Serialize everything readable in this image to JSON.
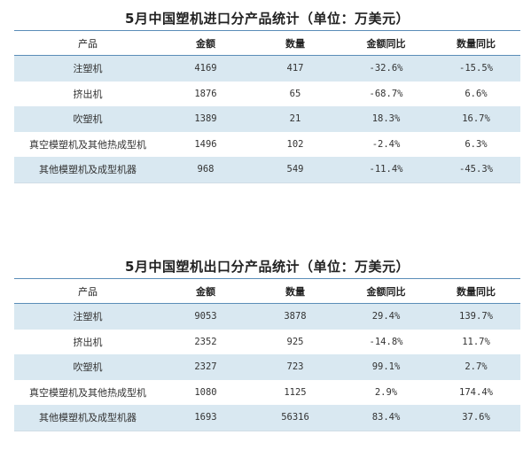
{
  "tables": [
    {
      "title": "5月中国塑机进口分产品统计（单位：万美元）",
      "headers": [
        "产品",
        "金额",
        "数量",
        "金额同比",
        "数量同比"
      ],
      "rows": [
        [
          "注塑机",
          "4169",
          "417",
          "-32.6%",
          "-15.5%"
        ],
        [
          "挤出机",
          "1876",
          "65",
          "-68.7%",
          "6.6%"
        ],
        [
          "吹塑机",
          "1389",
          "21",
          "18.3%",
          "16.7%"
        ],
        [
          "真空模塑机及其他热成型机",
          "1496",
          "102",
          "-2.4%",
          "6.3%"
        ],
        [
          "其他模塑机及成型机器",
          "968",
          "549",
          "-11.4%",
          "-45.3%"
        ]
      ]
    },
    {
      "title": "5月中国塑机出口分产品统计（单位：万美元）",
      "headers": [
        "产品",
        "金额",
        "数量",
        "金额同比",
        "数量同比"
      ],
      "rows": [
        [
          "注塑机",
          "9053",
          "3878",
          "29.4%",
          "139.7%"
        ],
        [
          "挤出机",
          "2352",
          "925",
          "-14.8%",
          "11.7%"
        ],
        [
          "吹塑机",
          "2327",
          "723",
          "99.1%",
          "2.7%"
        ],
        [
          "真空模塑机及其他热成型机",
          "1080",
          "1125",
          "2.9%",
          "174.4%"
        ],
        [
          "其他模塑机及成型机器",
          "1693",
          "56316",
          "83.4%",
          "37.6%"
        ]
      ]
    }
  ],
  "colors": {
    "row_stripe": "#d9e8f1",
    "rule_line": "#5b8db8",
    "text": "#222222"
  }
}
